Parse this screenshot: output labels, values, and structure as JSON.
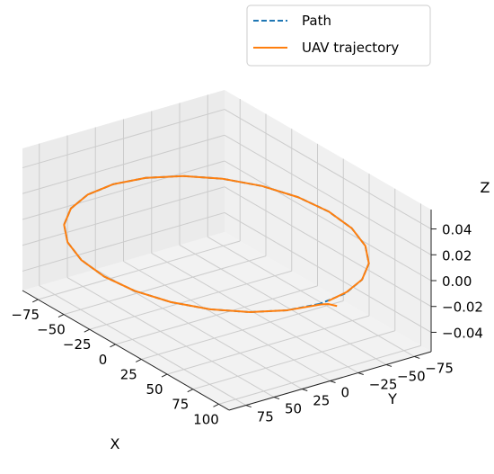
{
  "chart_data": {
    "type": "line",
    "projection": "3d",
    "title": "",
    "xlabel": "X",
    "ylabel": "Y",
    "zlabel": "Z",
    "xlim": [
      -90,
      110
    ],
    "ylim": [
      -90,
      90
    ],
    "zlim": [
      -0.055,
      0.055
    ],
    "x_ticks": [
      "−75",
      "−50",
      "−25",
      "0",
      "25",
      "50",
      "75",
      "100"
    ],
    "x_tick_values": [
      -75,
      -50,
      -25,
      0,
      25,
      50,
      75,
      100
    ],
    "y_ticks": [
      "−75",
      "−50",
      "−25",
      "0",
      "25",
      "50",
      "75"
    ],
    "y_tick_values": [
      -75,
      -50,
      -25,
      0,
      25,
      50,
      75
    ],
    "z_ticks": [
      "−0.04",
      "−0.02",
      "0.00",
      "0.02",
      "0.04"
    ],
    "z_tick_values": [
      -0.04,
      -0.02,
      0.0,
      0.02,
      0.04
    ],
    "grid": true,
    "legend_position": "top-right",
    "colors": {
      "path": "#1f77b4",
      "trajectory": "#ff7f0e",
      "pane": "#f2f2f2",
      "grid": "#cccccc"
    },
    "series": [
      {
        "name": "Path",
        "style": "dashed",
        "x": [
          100,
          96.6,
          86.6,
          70.7,
          50,
          25.9,
          0,
          -25.9,
          -50,
          -70.7,
          -86.6,
          -96.6,
          -100,
          -96.6,
          -86.6,
          -70.7,
          -50,
          -25.9,
          0,
          25.9,
          50,
          70.7,
          86.6,
          96.6,
          100
        ],
        "y": [
          0,
          25.9,
          50,
          70.7,
          86.6,
          96.6,
          100,
          96.6,
          86.6,
          70.7,
          50,
          25.9,
          0,
          -25.9,
          -50,
          -70.7,
          -86.6,
          -96.6,
          -100,
          -96.6,
          -86.6,
          -70.7,
          -50,
          -25.9,
          0
        ],
        "z": [
          0,
          0,
          0,
          0,
          0,
          0,
          0,
          0,
          0,
          0,
          0,
          0,
          0,
          0,
          0,
          0,
          0,
          0,
          0,
          0,
          0,
          0,
          0,
          0,
          0
        ]
      },
      {
        "name": "UAV trajectory",
        "style": "solid",
        "x": [
          108,
          103,
          101,
          96.6,
          86.6,
          70.7,
          50,
          25.9,
          0,
          -25.9,
          -50,
          -70.7,
          -86.6,
          -96.6,
          -100,
          -96.6,
          -86.6,
          -70.7,
          -50,
          -25.9,
          0,
          25.9,
          50,
          70.7,
          86.6,
          95.5,
          99.5
        ],
        "y": [
          -8,
          -5,
          0,
          25.9,
          50,
          70.7,
          86.6,
          96.6,
          100,
          96.6,
          86.6,
          70.7,
          50,
          25.9,
          0,
          -25.9,
          -50,
          -70.7,
          -86.6,
          -96.6,
          -100,
          -96.6,
          -86.6,
          -70.7,
          -50,
          -28,
          -8
        ],
        "z": [
          0,
          0,
          0,
          0,
          0,
          0,
          0,
          0,
          0,
          0,
          0,
          0,
          0,
          0,
          0,
          0,
          0,
          0,
          0,
          0,
          0,
          0,
          0,
          0,
          0,
          0,
          0
        ]
      }
    ]
  }
}
